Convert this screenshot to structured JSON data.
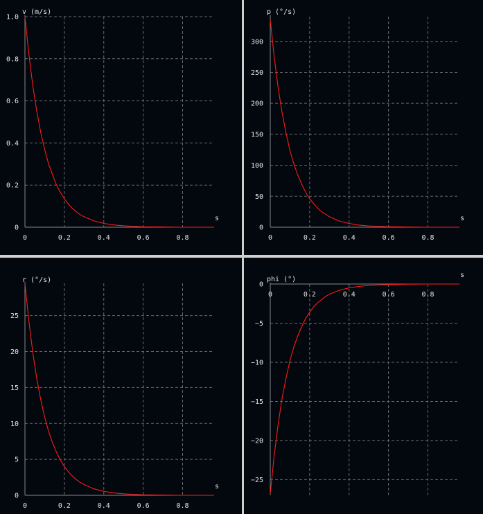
{
  "colors": {
    "background": "#03080e",
    "separator": "#cfcfcf",
    "axis": "#888888",
    "grid": "#6a6a6a",
    "curve": "#ff1a1a",
    "text": "#e6e6e6"
  },
  "chart_data": [
    {
      "type": "line",
      "ylabel": "v (m/s)",
      "xlabel": "s",
      "xlim": [
        0,
        0.96
      ],
      "ylim": [
        0,
        1.0
      ],
      "xticks": [
        0,
        0.2,
        0.4,
        0.6,
        0.8
      ],
      "xtick_labels": [
        "0",
        "0.2",
        "0.4",
        "0.6",
        "0.8"
      ],
      "yticks": [
        0,
        0.2,
        0.4,
        0.6,
        0.8,
        1.0
      ],
      "ytick_labels": [
        "0",
        "0.2",
        "0.4",
        "0.6",
        "0.8",
        "1.0"
      ],
      "grid": true,
      "series": [
        {
          "x": [
            0,
            0.02,
            0.04,
            0.06,
            0.08,
            0.1,
            0.12,
            0.14,
            0.16,
            0.18,
            0.2,
            0.22,
            0.24,
            0.26,
            0.28,
            0.3,
            0.35,
            0.4,
            0.45,
            0.5,
            0.6,
            0.7,
            0.8,
            0.9,
            0.96
          ],
          "values": [
            1.0,
            0.82,
            0.67,
            0.55,
            0.45,
            0.37,
            0.3,
            0.25,
            0.2,
            0.165,
            0.135,
            0.11,
            0.09,
            0.074,
            0.06,
            0.05,
            0.03,
            0.018,
            0.011,
            0.007,
            0.002,
            0.001,
            0.0,
            0.0,
            0.0
          ]
        }
      ]
    },
    {
      "type": "line",
      "ylabel": "p (°/s)",
      "xlabel": "s",
      "xlim": [
        0,
        0.96
      ],
      "ylim": [
        0,
        340
      ],
      "xticks": [
        0,
        0.2,
        0.4,
        0.6,
        0.8
      ],
      "xtick_labels": [
        "0",
        "0.2",
        "0.4",
        "0.6",
        "0.8"
      ],
      "yticks": [
        0,
        50,
        100,
        150,
        200,
        250,
        300
      ],
      "ytick_labels": [
        "0",
        "50",
        "100",
        "150",
        "200",
        "250",
        "300"
      ],
      "grid": true,
      "series": [
        {
          "x": [
            0,
            0.02,
            0.04,
            0.06,
            0.08,
            0.1,
            0.12,
            0.14,
            0.16,
            0.18,
            0.2,
            0.22,
            0.24,
            0.26,
            0.28,
            0.3,
            0.35,
            0.4,
            0.45,
            0.5,
            0.6,
            0.7,
            0.8,
            0.9,
            0.96
          ],
          "values": [
            335,
            275,
            225,
            185,
            152,
            124,
            102,
            84,
            69,
            56,
            46,
            38,
            31,
            25,
            21,
            17,
            10,
            6,
            3.5,
            2,
            0.8,
            0.3,
            0,
            0,
            0
          ]
        }
      ]
    },
    {
      "type": "line",
      "ylabel": "r (°/s)",
      "xlabel": "s",
      "xlim": [
        0,
        0.96
      ],
      "ylim": [
        0,
        29.5
      ],
      "xticks": [
        0,
        0.2,
        0.4,
        0.6,
        0.8
      ],
      "xtick_labels": [
        "0",
        "0.2",
        "0.4",
        "0.6",
        "0.8"
      ],
      "yticks": [
        0,
        5,
        10,
        15,
        20,
        25
      ],
      "ytick_labels": [
        "0",
        "5",
        "10",
        "15",
        "20",
        "25"
      ],
      "grid": true,
      "series": [
        {
          "x": [
            0,
            0.02,
            0.04,
            0.06,
            0.08,
            0.1,
            0.12,
            0.14,
            0.16,
            0.18,
            0.2,
            0.22,
            0.24,
            0.26,
            0.28,
            0.3,
            0.35,
            0.4,
            0.45,
            0.5,
            0.6,
            0.7,
            0.8,
            0.9,
            0.96
          ],
          "values": [
            29.5,
            24.2,
            19.8,
            16.2,
            13.3,
            10.9,
            8.9,
            7.3,
            6.0,
            4.9,
            4.0,
            3.3,
            2.7,
            2.2,
            1.8,
            1.5,
            0.9,
            0.55,
            0.33,
            0.2,
            0.07,
            0.03,
            0,
            0,
            0
          ]
        }
      ]
    },
    {
      "type": "line",
      "ylabel": "phi (°)",
      "xlabel": "s",
      "xlim": [
        0,
        0.96
      ],
      "ylim": [
        -27,
        0
      ],
      "xticks": [
        0,
        0.2,
        0.4,
        0.6,
        0.8
      ],
      "xtick_labels": [
        "0",
        "0.2",
        "0.4",
        "0.6",
        "0.8"
      ],
      "yticks": [
        0,
        -5,
        -10,
        -15,
        -20,
        -25
      ],
      "ytick_labels": [
        "0",
        "−5",
        "−10",
        "−15",
        "−20",
        "−25"
      ],
      "grid": true,
      "series": [
        {
          "x": [
            0,
            0.02,
            0.04,
            0.06,
            0.08,
            0.1,
            0.12,
            0.14,
            0.16,
            0.18,
            0.2,
            0.22,
            0.24,
            0.26,
            0.28,
            0.3,
            0.35,
            0.4,
            0.45,
            0.5,
            0.6,
            0.7,
            0.8,
            0.9,
            0.96
          ],
          "values": [
            -26.8,
            -21.9,
            -17.9,
            -14.6,
            -12.0,
            -9.8,
            -8.0,
            -6.6,
            -5.4,
            -4.4,
            -3.6,
            -2.9,
            -2.4,
            -2.0,
            -1.6,
            -1.3,
            -0.8,
            -0.5,
            -0.3,
            -0.18,
            -0.06,
            -0.02,
            0,
            0,
            0
          ]
        }
      ]
    }
  ]
}
